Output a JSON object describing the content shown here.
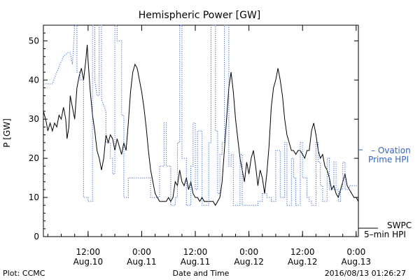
{
  "chart_data": {
    "type": "line",
    "title": "Hemispheric Power [GW]",
    "xlabel": "Date and Time",
    "ylabel": "P [GW]",
    "xlim_hours": [
      -14.5,
      2
    ],
    "ylim": [
      0,
      54
    ],
    "y_ticks": [
      0,
      10,
      20,
      30,
      40,
      50
    ],
    "x_ticks": [
      {
        "t": -108,
        "label_time": "12:00",
        "label_date": "Aug.10"
      },
      {
        "t": -96,
        "label_time": "0:00",
        "label_date": "Aug.11"
      },
      {
        "t": -84,
        "label_time": "12:00",
        "label_date": "Aug.11"
      },
      {
        "t": -72,
        "label_time": "0:00",
        "label_date": "Aug.12"
      },
      {
        "t": -60,
        "label_time": "12:00",
        "label_date": "Aug.12"
      },
      {
        "t": -48,
        "label_time": "0:00",
        "label_date": "Aug.13"
      }
    ],
    "x_range": [
      -118,
      -47.5
    ],
    "series": [
      {
        "name": "SWPC 5-min HPI",
        "color": "#000000",
        "style": "solid",
        "points": [
          [
            -118,
            32
          ],
          [
            -117.5,
            30
          ],
          [
            -117,
            27
          ],
          [
            -116.5,
            29
          ],
          [
            -116,
            27
          ],
          [
            -115.5,
            29
          ],
          [
            -115,
            28
          ],
          [
            -114.5,
            31
          ],
          [
            -114,
            30
          ],
          [
            -113.5,
            33
          ],
          [
            -113,
            30
          ],
          [
            -112.7,
            25
          ],
          [
            -112.3,
            28
          ],
          [
            -112,
            36
          ],
          [
            -111.5,
            33
          ],
          [
            -111,
            30
          ],
          [
            -110.5,
            38
          ],
          [
            -110,
            41
          ],
          [
            -109.5,
            43
          ],
          [
            -109,
            40
          ],
          [
            -108.5,
            45
          ],
          [
            -108.2,
            49
          ],
          [
            -108,
            45
          ],
          [
            -107.5,
            37
          ],
          [
            -107,
            31
          ],
          [
            -106.5,
            27
          ],
          [
            -106,
            22
          ],
          [
            -105.5,
            20
          ],
          [
            -105,
            17
          ],
          [
            -104.5,
            20
          ],
          [
            -104,
            26
          ],
          [
            -103.5,
            24
          ],
          [
            -103,
            26
          ],
          [
            -102.5,
            25
          ],
          [
            -102,
            22
          ],
          [
            -101.5,
            25
          ],
          [
            -101,
            23
          ],
          [
            -100.5,
            21
          ],
          [
            -100,
            24
          ],
          [
            -99.5,
            22
          ],
          [
            -99,
            29
          ],
          [
            -98.5,
            37
          ],
          [
            -98,
            42
          ],
          [
            -97.5,
            44
          ],
          [
            -97,
            43
          ],
          [
            -96.5,
            40
          ],
          [
            -96,
            37
          ],
          [
            -95.5,
            33
          ],
          [
            -95,
            28
          ],
          [
            -94.5,
            22
          ],
          [
            -94,
            17
          ],
          [
            -93.5,
            14
          ],
          [
            -93,
            11
          ],
          [
            -92.5,
            10
          ],
          [
            -92,
            9
          ],
          [
            -91.5,
            9
          ],
          [
            -91,
            9
          ],
          [
            -90.5,
            9
          ],
          [
            -90,
            10
          ],
          [
            -89.5,
            9
          ],
          [
            -89,
            10
          ],
          [
            -88.5,
            14
          ],
          [
            -88,
            13
          ],
          [
            -87.5,
            17
          ],
          [
            -87,
            14
          ],
          [
            -86.5,
            13
          ],
          [
            -86,
            15
          ],
          [
            -85.5,
            12
          ],
          [
            -85,
            14
          ],
          [
            -84.5,
            11
          ],
          [
            -84,
            10
          ],
          [
            -83.5,
            10
          ],
          [
            -83,
            9
          ],
          [
            -82.5,
            10
          ],
          [
            -82,
            9
          ],
          [
            -81.5,
            9
          ],
          [
            -81,
            9
          ],
          [
            -80.5,
            9
          ],
          [
            -80,
            9
          ],
          [
            -79.5,
            8
          ],
          [
            -79,
            9
          ],
          [
            -78.5,
            10
          ],
          [
            -78,
            14
          ],
          [
            -77.5,
            22
          ],
          [
            -77,
            30
          ],
          [
            -76.5,
            38
          ],
          [
            -76,
            42
          ],
          [
            -75.5,
            37
          ],
          [
            -75,
            30
          ],
          [
            -74.5,
            25
          ],
          [
            -74,
            20
          ],
          [
            -73.5,
            17
          ],
          [
            -73,
            14
          ],
          [
            -72.5,
            19
          ],
          [
            -72,
            16
          ],
          [
            -71.5,
            20
          ],
          [
            -71,
            22
          ],
          [
            -70.5,
            18
          ],
          [
            -70,
            13
          ],
          [
            -69.5,
            17
          ],
          [
            -69,
            15
          ],
          [
            -68.5,
            11
          ],
          [
            -68,
            16
          ],
          [
            -67.5,
            23
          ],
          [
            -67,
            33
          ],
          [
            -66.5,
            38
          ],
          [
            -66,
            40
          ],
          [
            -65.5,
            43
          ],
          [
            -65,
            40
          ],
          [
            -64.5,
            36
          ],
          [
            -64,
            30
          ],
          [
            -63.5,
            26
          ],
          [
            -63,
            24
          ],
          [
            -62.5,
            22
          ],
          [
            -62,
            22
          ],
          [
            -61.5,
            21
          ],
          [
            -61,
            22
          ],
          [
            -60.5,
            22
          ],
          [
            -60,
            21
          ],
          [
            -59.5,
            20
          ],
          [
            -59,
            22
          ],
          [
            -58.5,
            22
          ],
          [
            -58,
            27
          ],
          [
            -57.5,
            29
          ],
          [
            -57,
            26
          ],
          [
            -56.5,
            22
          ],
          [
            -56,
            20
          ],
          [
            -55.5,
            21
          ],
          [
            -55,
            18
          ],
          [
            -54.5,
            17
          ],
          [
            -54,
            15
          ],
          [
            -53.5,
            12
          ],
          [
            -53,
            13
          ],
          [
            -52.5,
            11
          ],
          [
            -52,
            10
          ],
          [
            -51.5,
            12
          ],
          [
            -51,
            14
          ],
          [
            -50.5,
            16
          ],
          [
            -50,
            13
          ],
          [
            -49.5,
            12
          ],
          [
            -49,
            11
          ],
          [
            -48.5,
            10
          ],
          [
            -48,
            10
          ],
          [
            -47.5,
            9
          ]
        ]
      },
      {
        "name": "Ovation Prime HPI",
        "color": "#3366cc",
        "style": "dotted",
        "points": [
          [
            -118,
            39
          ],
          [
            -116,
            39
          ],
          [
            -115,
            42
          ],
          [
            -113.5,
            46
          ],
          [
            -112.5,
            47
          ],
          [
            -112,
            47
          ],
          [
            -111.5,
            44
          ],
          [
            -111,
            54
          ],
          [
            -110.5,
            54
          ],
          [
            -110.5,
            42
          ],
          [
            -109.8,
            42
          ],
          [
            -109.8,
            40
          ],
          [
            -109,
            40
          ],
          [
            -109,
            10
          ],
          [
            -108,
            10
          ],
          [
            -108,
            9
          ],
          [
            -107,
            9
          ],
          [
            -107,
            54
          ],
          [
            -106.5,
            54
          ],
          [
            -106.5,
            40
          ],
          [
            -106,
            36
          ],
          [
            -105.5,
            36
          ],
          [
            -105.5,
            54
          ],
          [
            -105,
            54
          ],
          [
            -105,
            35
          ],
          [
            -104,
            32
          ],
          [
            -104,
            24
          ],
          [
            -103,
            24
          ],
          [
            -103,
            20
          ],
          [
            -102.5,
            20
          ],
          [
            -102.5,
            16
          ],
          [
            -102,
            16
          ],
          [
            -102,
            54
          ],
          [
            -101.5,
            54
          ],
          [
            -101.5,
            50
          ],
          [
            -100.5,
            50
          ],
          [
            -100.5,
            31
          ],
          [
            -100,
            31
          ],
          [
            -100,
            10
          ],
          [
            -99,
            10
          ],
          [
            -99,
            15
          ],
          [
            -96,
            15
          ],
          [
            -96,
            15
          ],
          [
            -94,
            15
          ],
          [
            -94,
            10
          ],
          [
            -92,
            10
          ],
          [
            -92,
            18
          ],
          [
            -91,
            18
          ],
          [
            -91,
            29
          ],
          [
            -90.5,
            29
          ],
          [
            -90.5,
            18
          ],
          [
            -89.5,
            18
          ],
          [
            -89.5,
            8
          ],
          [
            -88.5,
            8
          ],
          [
            -88.5,
            10
          ],
          [
            -88,
            10
          ],
          [
            -88,
            24
          ],
          [
            -87.5,
            24
          ],
          [
            -87.5,
            54
          ],
          [
            -87,
            54
          ],
          [
            -87,
            20
          ],
          [
            -86,
            20
          ],
          [
            -86,
            8
          ],
          [
            -85,
            8
          ],
          [
            -85,
            18
          ],
          [
            -84.5,
            18
          ],
          [
            -84.5,
            29
          ],
          [
            -84,
            29
          ],
          [
            -84,
            12
          ],
          [
            -83.5,
            12
          ],
          [
            -83.5,
            27
          ],
          [
            -82.5,
            27
          ],
          [
            -82.5,
            8
          ],
          [
            -81,
            8
          ],
          [
            -81,
            24
          ],
          [
            -80.5,
            24
          ],
          [
            -80.5,
            54
          ],
          [
            -79.5,
            54
          ],
          [
            -79.5,
            27
          ],
          [
            -79,
            27
          ],
          [
            -79,
            11
          ],
          [
            -78.5,
            11
          ],
          [
            -78.5,
            21
          ],
          [
            -78,
            21
          ],
          [
            -78,
            24
          ],
          [
            -77.5,
            24
          ],
          [
            -77.5,
            54
          ],
          [
            -76.5,
            54
          ],
          [
            -76.5,
            18
          ],
          [
            -76,
            18
          ],
          [
            -76,
            21
          ],
          [
            -75.5,
            21
          ],
          [
            -75.5,
            8
          ],
          [
            -74,
            8
          ],
          [
            -74,
            21
          ],
          [
            -73.5,
            21
          ],
          [
            -73.5,
            8
          ],
          [
            -70,
            8
          ],
          [
            -70,
            9
          ],
          [
            -69,
            9
          ],
          [
            -69,
            11
          ],
          [
            -68,
            11
          ],
          [
            -68,
            10
          ],
          [
            -67,
            10
          ],
          [
            -67,
            9
          ],
          [
            -66,
            9
          ],
          [
            -66,
            22
          ],
          [
            -65,
            22
          ],
          [
            -65,
            10
          ],
          [
            -64,
            10
          ],
          [
            -64,
            24
          ],
          [
            -63.5,
            24
          ],
          [
            -63.5,
            8
          ],
          [
            -62.5,
            8
          ],
          [
            -62.5,
            20
          ],
          [
            -62,
            20
          ],
          [
            -62,
            15
          ],
          [
            -61.5,
            15
          ],
          [
            -61.5,
            8
          ],
          [
            -60.5,
            8
          ],
          [
            -60.5,
            24
          ],
          [
            -60,
            24
          ],
          [
            -60,
            15
          ],
          [
            -59,
            15
          ],
          [
            -59,
            10
          ],
          [
            -58.5,
            10
          ],
          [
            -58.5,
            9
          ],
          [
            -58,
            9
          ],
          [
            -58,
            8
          ],
          [
            -57,
            8
          ],
          [
            -57,
            24
          ],
          [
            -56.5,
            24
          ],
          [
            -56.5,
            19
          ],
          [
            -56,
            19
          ],
          [
            -56,
            13
          ],
          [
            -55.5,
            13
          ],
          [
            -55.5,
            9
          ],
          [
            -54.5,
            9
          ],
          [
            -54.5,
            20
          ],
          [
            -54,
            20
          ],
          [
            -54,
            12
          ],
          [
            -53,
            12
          ],
          [
            -53,
            19
          ],
          [
            -52.5,
            19
          ],
          [
            -52.5,
            12
          ],
          [
            -52,
            12
          ],
          [
            -52,
            9
          ],
          [
            -51.5,
            9
          ],
          [
            -51.5,
            12
          ],
          [
            -51,
            12
          ],
          [
            -51,
            19
          ],
          [
            -50.5,
            19
          ],
          [
            -50.5,
            12
          ],
          [
            -49.5,
            12
          ],
          [
            -49.5,
            13
          ],
          [
            -47.5,
            13
          ]
        ]
      }
    ]
  },
  "legend": {
    "ovation_line1": "– Ovation",
    "ovation_line2": "Prime HPI",
    "swpc_line1": "SWPC",
    "swpc_line2": "5–min HPI"
  },
  "footer": {
    "left": "Plot: CCMC",
    "right": "2016/08/13 01:26:27"
  }
}
